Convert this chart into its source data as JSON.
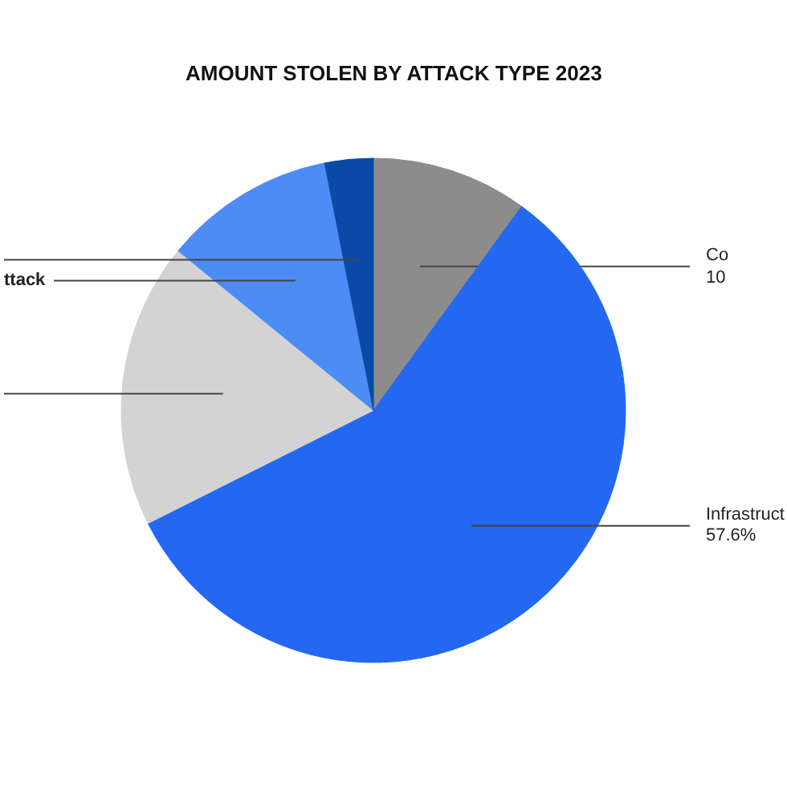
{
  "chart_data": {
    "type": "pie",
    "title": "AMOUNT STOLEN BY ATTACK TYPE 2023",
    "categories": [
      "Co",
      "Infrastruct",
      null,
      "ttack",
      null
    ],
    "values": [
      10,
      57.6,
      18.3,
      11.0,
      3.1
    ],
    "value_labels": [
      "10",
      "57.6%",
      null,
      null,
      null
    ],
    "colors": [
      "#8c8c8c",
      "#2468f2",
      "#d3d3d3",
      "#4d8cf5",
      "#0a4aa6"
    ]
  }
}
